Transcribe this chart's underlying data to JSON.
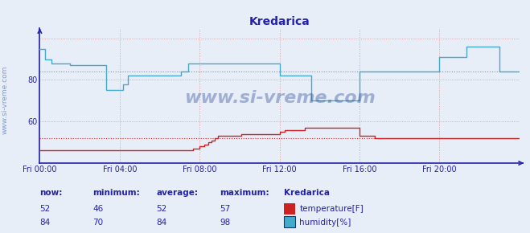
{
  "title": "Kredarica",
  "title_color": "#2222aa",
  "bg_color": "#e8eef8",
  "plot_bg_color": "#e8eef8",
  "axis_color": "#2222aa",
  "grid_color": "#cc9999",
  "temp_color": "#cc2222",
  "humidity_color": "#44aacc",
  "xlim": [
    0,
    288
  ],
  "ylim": [
    40,
    105
  ],
  "yticks": [
    60,
    80
  ],
  "xtick_labels": [
    "Fri 00:00",
    "Fri 04:00",
    "Fri 08:00",
    "Fri 12:00",
    "Fri 16:00",
    "Fri 20:00"
  ],
  "xtick_positions": [
    0,
    48,
    96,
    144,
    192,
    240
  ],
  "temp_avg": 52,
  "humidity_avg": 84,
  "watermark": "www.si-vreme.com",
  "legend_title": "Kredarica",
  "stats_headers": [
    "now:",
    "minimum:",
    "average:",
    "maximum:"
  ],
  "temp_stats": [
    52,
    46,
    52,
    57
  ],
  "humidity_stats": [
    84,
    70,
    84,
    98
  ],
  "temp_label": "temperature[F]",
  "humidity_label": "humidity[%]",
  "temp_data_y": [
    46,
    46,
    46,
    46,
    46,
    46,
    46,
    46,
    46,
    46,
    46,
    46,
    46,
    46,
    46,
    46,
    46,
    46,
    46,
    46,
    46,
    46,
    46,
    46,
    46,
    46,
    46,
    46,
    46,
    46,
    46,
    46,
    46,
    46,
    46,
    46,
    46,
    46,
    46,
    46,
    46,
    46,
    46,
    46,
    46,
    46,
    46,
    46,
    46,
    46,
    46,
    46,
    46,
    46,
    46,
    46,
    46,
    46,
    46,
    46,
    46,
    46,
    46,
    46,
    46,
    46,
    46,
    46,
    46,
    46,
    46,
    46,
    46,
    46,
    46,
    46,
    46,
    46,
    46,
    46,
    46,
    46,
    46,
    46,
    46,
    46,
    46,
    46,
    46,
    46,
    46,
    46,
    47,
    47,
    47,
    47,
    48,
    48,
    48,
    49,
    49,
    50,
    50,
    51,
    51,
    52,
    52,
    53,
    53,
    53,
    53,
    53,
    53,
    53,
    53,
    53,
    53,
    53,
    53,
    53,
    53,
    54,
    54,
    54,
    54,
    54,
    54,
    54,
    54,
    54,
    54,
    54,
    54,
    54,
    54,
    54,
    54,
    54,
    54,
    54,
    54,
    54,
    54,
    54,
    55,
    55,
    55,
    56,
    56,
    56,
    56,
    56,
    56,
    56,
    56,
    56,
    56,
    56,
    56,
    57,
    57,
    57,
    57,
    57,
    57,
    57,
    57,
    57,
    57,
    57,
    57,
    57,
    57,
    57,
    57,
    57,
    57,
    57,
    57,
    57,
    57,
    57,
    57,
    57,
    57,
    57,
    57,
    57,
    57,
    57,
    57,
    57,
    53,
    53,
    53,
    53,
    53,
    53,
    53,
    53,
    53,
    52,
    52,
    52,
    52,
    52,
    52,
    52,
    52,
    52,
    52,
    52,
    52,
    52,
    52,
    52,
    52,
    52,
    52,
    52,
    52,
    52,
    52,
    52,
    52,
    52,
    52,
    52,
    52,
    52,
    52,
    52,
    52,
    52,
    52,
    52,
    52,
    52,
    52,
    52,
    52,
    52,
    52,
    52,
    52,
    52,
    52,
    52,
    52,
    52,
    52,
    52,
    52,
    52,
    52,
    52,
    52,
    52,
    52,
    52,
    52,
    52,
    52,
    52,
    52,
    52,
    52,
    52,
    52,
    52,
    52,
    52,
    52,
    52,
    52,
    52,
    52,
    52,
    52,
    52,
    52,
    52,
    52,
    52,
    52,
    52,
    52,
    52,
    52
  ],
  "humidity_data_y": [
    95,
    95,
    95,
    90,
    90,
    90,
    90,
    88,
    88,
    88,
    88,
    88,
    88,
    88,
    88,
    88,
    88,
    88,
    87,
    87,
    87,
    87,
    87,
    87,
    87,
    87,
    87,
    87,
    87,
    87,
    87,
    87,
    87,
    87,
    87,
    87,
    87,
    87,
    87,
    87,
    75,
    75,
    75,
    75,
    75,
    75,
    75,
    75,
    75,
    75,
    78,
    78,
    78,
    82,
    82,
    82,
    82,
    82,
    82,
    82,
    82,
    82,
    82,
    82,
    82,
    82,
    82,
    82,
    82,
    82,
    82,
    82,
    82,
    82,
    82,
    82,
    82,
    82,
    82,
    82,
    82,
    82,
    82,
    82,
    82,
    84,
    84,
    84,
    84,
    88,
    88,
    88,
    88,
    88,
    88,
    88,
    88,
    88,
    88,
    88,
    88,
    88,
    88,
    88,
    88,
    88,
    88,
    88,
    88,
    88,
    88,
    88,
    88,
    88,
    88,
    88,
    88,
    88,
    88,
    88,
    88,
    88,
    88,
    88,
    88,
    88,
    88,
    88,
    88,
    88,
    88,
    88,
    88,
    88,
    88,
    88,
    88,
    88,
    88,
    88,
    88,
    88,
    88,
    88,
    82,
    82,
    82,
    82,
    82,
    82,
    82,
    82,
    82,
    82,
    82,
    82,
    82,
    82,
    82,
    82,
    82,
    82,
    82,
    70,
    70,
    70,
    70,
    70,
    70,
    70,
    70,
    70,
    70,
    70,
    70,
    70,
    70,
    70,
    70,
    70,
    70,
    70,
    70,
    70,
    70,
    70,
    70,
    70,
    70,
    70,
    70,
    70,
    84,
    84,
    84,
    84,
    84,
    84,
    84,
    84,
    84,
    84,
    84,
    84,
    84,
    84,
    84,
    84,
    84,
    84,
    84,
    84,
    84,
    84,
    84,
    84,
    84,
    84,
    84,
    84,
    84,
    84,
    84,
    84,
    84,
    84,
    84,
    84,
    84,
    84,
    84,
    84,
    84,
    84,
    84,
    84,
    84,
    84,
    84,
    84,
    91,
    91,
    91,
    91,
    91,
    91,
    91,
    91,
    91,
    91,
    91,
    91,
    91,
    91,
    91,
    91,
    96,
    96,
    96,
    96,
    96,
    96,
    96,
    96,
    96,
    96,
    96,
    96,
    96,
    96,
    96,
    96,
    96,
    96,
    96,
    96,
    84,
    84,
    84,
    84,
    84,
    84,
    84,
    84,
    84,
    84,
    84,
    84,
    84
  ]
}
